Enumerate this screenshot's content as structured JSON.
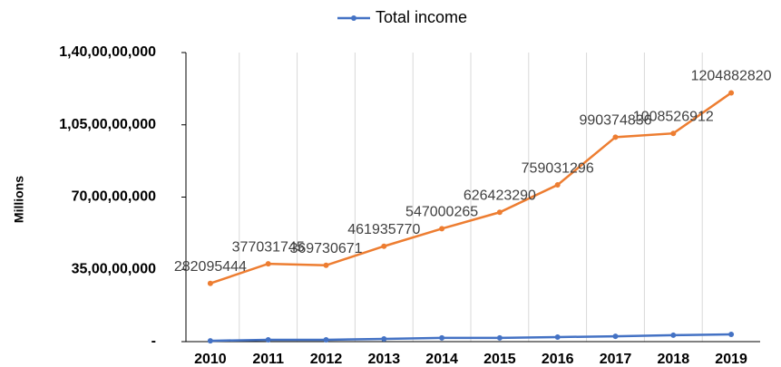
{
  "chart_data": {
    "type": "line",
    "y_axis_label": "Millions",
    "categories": [
      "2010",
      "2011",
      "2012",
      "2013",
      "2014",
      "2015",
      "2016",
      "2017",
      "2018",
      "2019"
    ],
    "series": [
      {
        "color": "#ed7d31",
        "data_labels": true,
        "values": [
          282095444,
          377031745,
          369730671,
          461935770,
          547000265,
          626423290,
          759031296,
          990374836,
          1008526912,
          1204882820
        ]
      },
      {
        "name": "Total income",
        "color": "#4472c4",
        "values": [
          4000000,
          9000000,
          9000000,
          13000000,
          18000000,
          18000000,
          22000000,
          26000000,
          31000000,
          35000000
        ]
      }
    ],
    "ylim": [
      0,
      1400000000
    ],
    "yticks": [
      {
        "value": 0,
        "label": "-"
      },
      {
        "value": 350000000,
        "label": "35,00,00,000"
      },
      {
        "value": 700000000,
        "label": "70,00,00,000"
      },
      {
        "value": 1050000000,
        "label": "1,05,00,00,000"
      },
      {
        "value": 1400000000,
        "label": "1,40,00,00,000"
      }
    ],
    "grid": "vertical",
    "legend": "top"
  }
}
